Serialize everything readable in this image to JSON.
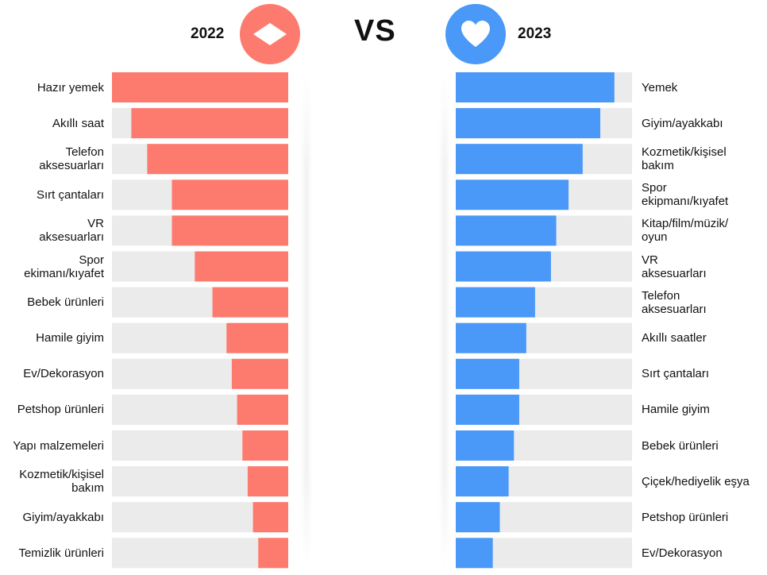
{
  "header": {
    "left_year": "2022",
    "vs": "VS",
    "right_year": "2023",
    "left_icon": "diamond-icon",
    "right_icon": "heart-icon"
  },
  "colors": {
    "left_bar": "#fd7b6e",
    "right_bar": "#4a98f7",
    "track": "#ebebeb"
  },
  "chart_data": [
    {
      "type": "bar",
      "orientation": "horizontal",
      "direction": "right-to-left",
      "title": "2022",
      "categories": [
        "Hazır yemek",
        "Akıllı saat",
        "Telefon aksesuarları",
        "Sırt çantaları",
        "VR aksesuarları",
        "Spor ekimanı/kıyafet",
        "Bebek ürünleri",
        "Hamile giyim",
        "Ev/Dekorasyon",
        "Petshop ürünleri",
        "Yapı malzemeleri",
        "Kozmetik/kişisel bakım",
        "Giyim/ayakkabı",
        "Temizlik ürünleri"
      ],
      "labels_display": [
        "Hazır yemek",
        "Akıllı saat",
        "Telefon\naksesuarları",
        "Sırt çantaları",
        "VR\naksesuarları",
        "Spor\nekimanı/kıyafet",
        "Bebek ürünleri",
        "Hamile giyim",
        "Ev/Dekorasyon",
        "Petshop ürünleri",
        "Yapı malzemeleri",
        "Kozmetik/kişisel\nbakım",
        "Giyim/ayakkabı",
        "Temizlik ürünleri"
      ],
      "values": [
        100,
        89,
        80,
        66,
        66,
        53,
        43,
        35,
        32,
        29,
        26,
        23,
        20,
        17
      ],
      "xlim": [
        0,
        100
      ],
      "grid": false,
      "tick_labels": false
    },
    {
      "type": "bar",
      "orientation": "horizontal",
      "direction": "left-to-right",
      "title": "2023",
      "categories": [
        "Yemek",
        "Giyim/ayakkabı",
        "Kozmetik/kişisel bakım",
        "Spor ekipmanı/kıyafet",
        "Kitap/film/müzik/oyun",
        "VR aksesuarları",
        "Telefon aksesuarları",
        "Akıllı saatler",
        "Sırt çantaları",
        "Hamile giyim",
        "Bebek ürünleri",
        "Çiçek/hediyelik eşya",
        "Petshop ürünleri",
        "Ev/Dekorasyon"
      ],
      "labels_display": [
        "Yemek",
        "Giyim/ayakkabı",
        "Kozmetik/kişisel\nbakım",
        "Spor\nekipmanı/kıyafet",
        "Kitap/film/müzik/\noyun",
        "VR\naksesuarları",
        "Telefon\naksesuarları",
        "Akıllı saatler",
        "Sırt çantaları",
        "Hamile giyim",
        "Bebek ürünleri",
        "Çiçek/hediyelik eşya",
        "Petshop ürünleri",
        "Ev/Dekorasyon"
      ],
      "values": [
        90,
        82,
        72,
        64,
        57,
        54,
        45,
        40,
        36,
        36,
        33,
        30,
        25,
        21
      ],
      "xlim": [
        0,
        100
      ],
      "grid": false,
      "tick_labels": false
    }
  ]
}
